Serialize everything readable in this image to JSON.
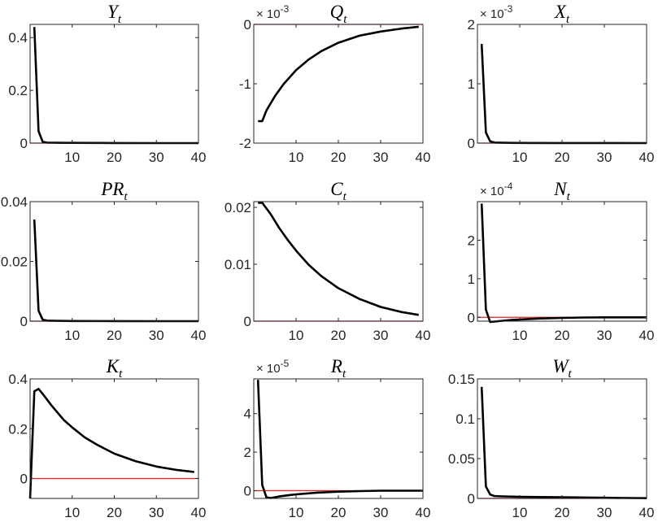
{
  "chart_data": [
    {
      "type": "line",
      "title": "Y",
      "title_sub": "t",
      "xlim": [
        0,
        40
      ],
      "ylim": [
        0,
        0.45
      ],
      "xticks": [
        "10",
        "20",
        "30",
        "40"
      ],
      "yticks": [
        "0",
        "0.2",
        "0.4"
      ],
      "ytick_values": [
        0,
        0.2,
        0.4
      ],
      "exponent": "",
      "series": [
        {
          "x": [
            1,
            2,
            3,
            4,
            5,
            6,
            8,
            10,
            15,
            20,
            30,
            40
          ],
          "values": [
            0.44,
            0.045,
            0.005,
            0.002,
            0.0015,
            0.0012,
            0.001,
            0.0008,
            0.0005,
            0.0003,
            0.0001,
            0
          ]
        }
      ],
      "reference": 0,
      "grid": false
    },
    {
      "type": "line",
      "title": "Q",
      "title_sub": "t",
      "xlim": [
        0,
        40
      ],
      "ylim": [
        -2,
        0
      ],
      "xticks": [
        "10",
        "20",
        "30",
        "40"
      ],
      "yticks": [
        "-2",
        "-1",
        "0"
      ],
      "ytick_values": [
        -2,
        -1,
        0
      ],
      "exponent": "× 10-3",
      "series": [
        {
          "x": [
            1,
            2,
            3,
            5,
            7,
            10,
            13,
            16,
            20,
            25,
            30,
            35,
            39
          ],
          "values": [
            -1.63,
            -1.63,
            -1.45,
            -1.21,
            -1.01,
            -0.77,
            -0.59,
            -0.45,
            -0.31,
            -0.19,
            -0.12,
            -0.07,
            -0.04
          ]
        }
      ],
      "reference": 0,
      "grid": false
    },
    {
      "type": "line",
      "title": "X",
      "title_sub": "t",
      "xlim": [
        0,
        40
      ],
      "ylim": [
        0,
        2
      ],
      "xticks": [
        "10",
        "20",
        "30",
        "40"
      ],
      "yticks": [
        "0",
        "1",
        "2"
      ],
      "ytick_values": [
        0,
        1,
        2
      ],
      "exponent": "× 10-3",
      "series": [
        {
          "x": [
            1,
            2,
            3,
            4,
            6,
            10,
            20,
            30,
            40
          ],
          "values": [
            1.67,
            0.18,
            0.03,
            0.01,
            0.005,
            0.003,
            0.002,
            0.001,
            0
          ]
        }
      ],
      "reference": 0,
      "grid": false
    },
    {
      "type": "line",
      "title": "PR",
      "title_sub": "t",
      "xlim": [
        0,
        40
      ],
      "ylim": [
        0,
        0.04
      ],
      "xticks": [
        "10",
        "20",
        "30",
        "40"
      ],
      "yticks": [
        "0",
        "0.02",
        "0.04"
      ],
      "ytick_values": [
        0,
        0.02,
        0.04
      ],
      "exponent": "",
      "series": [
        {
          "x": [
            1,
            2,
            3,
            4,
            6,
            10,
            20,
            30,
            40
          ],
          "values": [
            0.034,
            0.0035,
            0.0005,
            0.0002,
            0.0001,
            5e-05,
            2e-05,
            0,
            0
          ]
        }
      ],
      "reference": 0,
      "grid": false
    },
    {
      "type": "line",
      "title": "C",
      "title_sub": "t",
      "xlim": [
        0,
        40
      ],
      "ylim": [
        0,
        0.021
      ],
      "xticks": [
        "10",
        "20",
        "30",
        "40"
      ],
      "yticks": [
        "0",
        "0.01",
        "0.02"
      ],
      "ytick_values": [
        0,
        0.01,
        0.02
      ],
      "exponent": "",
      "series": [
        {
          "x": [
            1,
            2,
            4,
            6,
            8,
            10,
            13,
            16,
            20,
            25,
            30,
            35,
            39
          ],
          "values": [
            0.0208,
            0.0208,
            0.0188,
            0.0164,
            0.0143,
            0.0124,
            0.0099,
            0.0079,
            0.0058,
            0.0039,
            0.0025,
            0.0016,
            0.0011
          ]
        }
      ],
      "reference": 0,
      "grid": false
    },
    {
      "type": "line",
      "title": "N",
      "title_sub": "t",
      "xlim": [
        0,
        40
      ],
      "ylim": [
        -0.1,
        3
      ],
      "xticks": [
        "10",
        "20",
        "30",
        "40"
      ],
      "yticks": [
        "0",
        "1",
        "2"
      ],
      "ytick_values": [
        0,
        1,
        2
      ],
      "exponent": "× 10-4",
      "series": [
        {
          "x": [
            1,
            2,
            3,
            4,
            6,
            8,
            10,
            15,
            20,
            25,
            30,
            40
          ],
          "values": [
            2.95,
            0.2,
            -0.12,
            -0.11,
            -0.09,
            -0.07,
            -0.055,
            -0.03,
            -0.015,
            -0.005,
            0,
            0
          ]
        }
      ],
      "reference": 0,
      "grid": false
    },
    {
      "type": "line",
      "title": "K",
      "title_sub": "t",
      "xlim": [
        0,
        40
      ],
      "ylim": [
        -0.08,
        0.4
      ],
      "xticks": [
        "10",
        "20",
        "30",
        "40"
      ],
      "yticks": [
        "0",
        "0.2",
        "0.4"
      ],
      "ytick_values": [
        0,
        0.2,
        0.4
      ],
      "exponent": "",
      "series": [
        {
          "x": [
            0,
            1,
            2,
            3,
            5,
            8,
            10,
            13,
            16,
            20,
            25,
            30,
            35,
            39
          ],
          "values": [
            -0.08,
            0.35,
            0.36,
            0.34,
            0.295,
            0.235,
            0.205,
            0.165,
            0.135,
            0.1,
            0.07,
            0.048,
            0.034,
            0.026
          ]
        }
      ],
      "reference": 0,
      "grid": false
    },
    {
      "type": "line",
      "title": "R",
      "title_sub": "t",
      "xlim": [
        0,
        40
      ],
      "ylim": [
        -0.4,
        5.8
      ],
      "xticks": [
        "10",
        "20",
        "30",
        "40"
      ],
      "yticks": [
        "0",
        "2",
        "4"
      ],
      "ytick_values": [
        0,
        2,
        4
      ],
      "exponent": "× 10-5",
      "series": [
        {
          "x": [
            1,
            2,
            3,
            4,
            6,
            8,
            10,
            15,
            20,
            25,
            30,
            40
          ],
          "values": [
            5.75,
            0.3,
            -0.35,
            -0.38,
            -0.3,
            -0.24,
            -0.19,
            -0.1,
            -0.05,
            -0.02,
            0,
            0
          ]
        }
      ],
      "reference": 0,
      "grid": false
    },
    {
      "type": "line",
      "title": "W",
      "title_sub": "t",
      "xlim": [
        0,
        40
      ],
      "ylim": [
        0,
        0.15
      ],
      "xticks": [
        "10",
        "20",
        "30",
        "40"
      ],
      "yticks": [
        "0",
        "0.05",
        "0.1",
        "0.15"
      ],
      "ytick_values": [
        0,
        0.05,
        0.1,
        0.15
      ],
      "exponent": "",
      "series": [
        {
          "x": [
            1,
            2,
            3,
            4,
            6,
            10,
            20,
            30,
            40
          ],
          "values": [
            0.14,
            0.015,
            0.005,
            0.003,
            0.0025,
            0.002,
            0.0015,
            0.0008,
            0.0003
          ]
        }
      ],
      "reference": 0,
      "grid": false
    }
  ],
  "colors": {
    "line": "#000000",
    "reference": "#e8231c",
    "axes": "#262626"
  }
}
